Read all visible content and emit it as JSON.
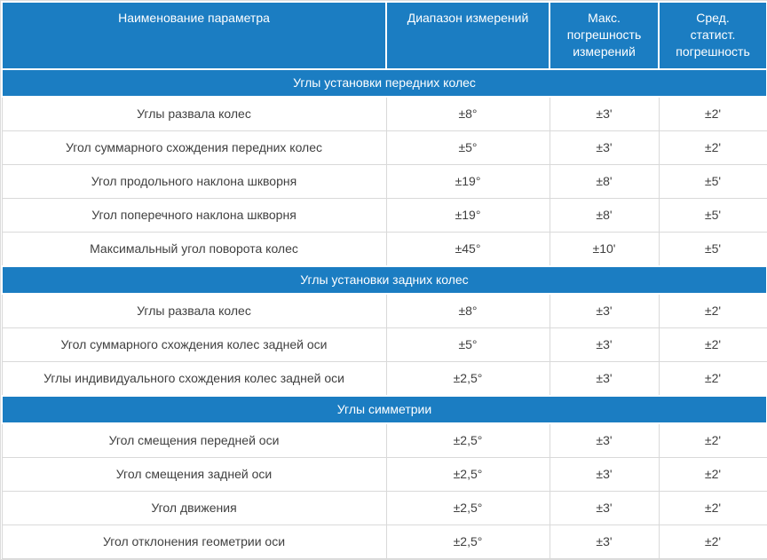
{
  "theme": {
    "accent_blue": "#1b7dc2",
    "header_text": "#ffffff",
    "cell_text": "#404040",
    "row_border": "#d9d9d9",
    "outer_border": "#dcdcdc"
  },
  "table": {
    "columns": [
      {
        "label": "Наименование параметра"
      },
      {
        "label": "Диапазон измерений"
      },
      {
        "label": "Макс. погрешность измерений"
      },
      {
        "label": "Сред. статист. погрешность"
      }
    ],
    "sections": [
      {
        "title": "Углы установки передних колес",
        "rows": [
          {
            "name": "Углы развала колес",
            "range": "±8°",
            "max_error": "±3'",
            "stat_error": "±2'"
          },
          {
            "name": "Угол суммарного схождения передних колес",
            "range": "±5°",
            "max_error": "±3'",
            "stat_error": "±2'"
          },
          {
            "name": "Угол продольного наклона шкворня",
            "range": "±19°",
            "max_error": "±8'",
            "stat_error": "±5'"
          },
          {
            "name": "Угол поперечного наклона шкворня",
            "range": "±19°",
            "max_error": "±8'",
            "stat_error": "±5'"
          },
          {
            "name": "Максимальный угол поворота колес",
            "range": "±45°",
            "max_error": "±10'",
            "stat_error": "±5'"
          }
        ]
      },
      {
        "title": "Углы установки задних колес",
        "rows": [
          {
            "name": "Углы развала колес",
            "range": "±8°",
            "max_error": "±3'",
            "stat_error": "±2'"
          },
          {
            "name": "Угол суммарного схождения колес задней оси",
            "range": "±5°",
            "max_error": "±3'",
            "stat_error": "±2'"
          },
          {
            "name": "Углы индивидуального схождения колес задней оси",
            "range": "±2,5°",
            "max_error": "±3'",
            "stat_error": "±2'"
          }
        ]
      },
      {
        "title": "Углы симметрии",
        "rows": [
          {
            "name": "Угол смещения передней оси",
            "range": "±2,5°",
            "max_error": "±3'",
            "stat_error": "±2'"
          },
          {
            "name": "Угол смещения задней оси",
            "range": "±2,5°",
            "max_error": "±3'",
            "stat_error": "±2'"
          },
          {
            "name": "Угол движения",
            "range": "±2,5°",
            "max_error": "±3'",
            "stat_error": "±2'"
          },
          {
            "name": "Угол отклонения геометрии оси",
            "range": "±2,5°",
            "max_error": "±3'",
            "stat_error": "±2'"
          }
        ]
      }
    ]
  }
}
